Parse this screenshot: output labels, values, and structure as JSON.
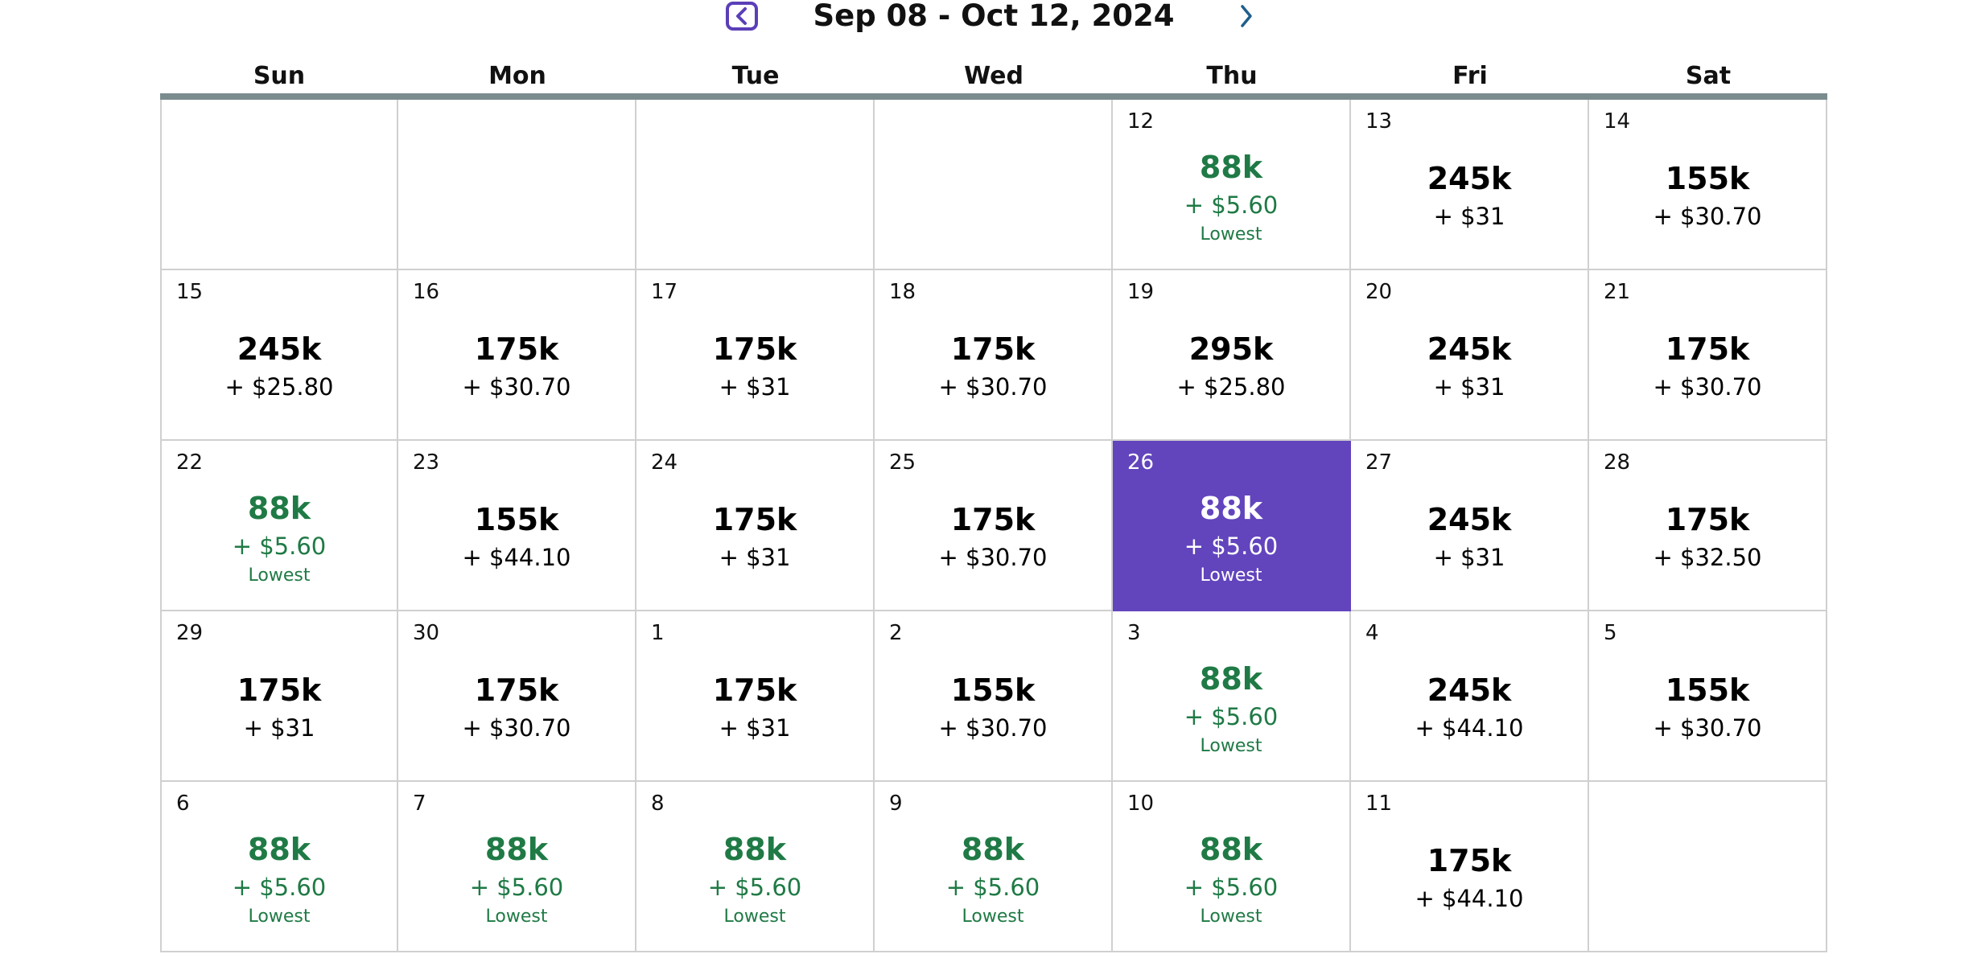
{
  "header": {
    "title": "Sep 08 - Oct 12, 2024",
    "prev_icon": "chevron-left-icon",
    "next_icon": "chevron-right-icon"
  },
  "weekdays": [
    "Sun",
    "Mon",
    "Tue",
    "Wed",
    "Thu",
    "Fri",
    "Sat"
  ],
  "lowest_label": "Lowest",
  "colors": {
    "accent": "#6244bd",
    "lowest": "#1f7a45",
    "header_rule": "#7b8c8f",
    "grid_line": "#d0d0d0"
  },
  "selected_date": "26",
  "weeks": [
    [
      null,
      null,
      null,
      null,
      {
        "date": "12",
        "points": "88k",
        "tax": "+ $5.60",
        "lowest": true
      },
      {
        "date": "13",
        "points": "245k",
        "tax": "+ $31",
        "lowest": false
      },
      {
        "date": "14",
        "points": "155k",
        "tax": "+ $30.70",
        "lowest": false
      }
    ],
    [
      {
        "date": "15",
        "points": "245k",
        "tax": "+ $25.80",
        "lowest": false
      },
      {
        "date": "16",
        "points": "175k",
        "tax": "+ $30.70",
        "lowest": false
      },
      {
        "date": "17",
        "points": "175k",
        "tax": "+ $31",
        "lowest": false
      },
      {
        "date": "18",
        "points": "175k",
        "tax": "+ $30.70",
        "lowest": false
      },
      {
        "date": "19",
        "points": "295k",
        "tax": "+ $25.80",
        "lowest": false
      },
      {
        "date": "20",
        "points": "245k",
        "tax": "+ $31",
        "lowest": false
      },
      {
        "date": "21",
        "points": "175k",
        "tax": "+ $30.70",
        "lowest": false
      }
    ],
    [
      {
        "date": "22",
        "points": "88k",
        "tax": "+ $5.60",
        "lowest": true
      },
      {
        "date": "23",
        "points": "155k",
        "tax": "+ $44.10",
        "lowest": false
      },
      {
        "date": "24",
        "points": "175k",
        "tax": "+ $31",
        "lowest": false
      },
      {
        "date": "25",
        "points": "175k",
        "tax": "+ $30.70",
        "lowest": false
      },
      {
        "date": "26",
        "points": "88k",
        "tax": "+ $5.60",
        "lowest": true,
        "selected": true
      },
      {
        "date": "27",
        "points": "245k",
        "tax": "+ $31",
        "lowest": false
      },
      {
        "date": "28",
        "points": "175k",
        "tax": "+ $32.50",
        "lowest": false
      }
    ],
    [
      {
        "date": "29",
        "points": "175k",
        "tax": "+ $31",
        "lowest": false
      },
      {
        "date": "30",
        "points": "175k",
        "tax": "+ $30.70",
        "lowest": false
      },
      {
        "date": "1",
        "points": "175k",
        "tax": "+ $31",
        "lowest": false
      },
      {
        "date": "2",
        "points": "155k",
        "tax": "+ $30.70",
        "lowest": false
      },
      {
        "date": "3",
        "points": "88k",
        "tax": "+ $5.60",
        "lowest": true
      },
      {
        "date": "4",
        "points": "245k",
        "tax": "+ $44.10",
        "lowest": false
      },
      {
        "date": "5",
        "points": "155k",
        "tax": "+ $30.70",
        "lowest": false
      }
    ],
    [
      {
        "date": "6",
        "points": "88k",
        "tax": "+ $5.60",
        "lowest": true
      },
      {
        "date": "7",
        "points": "88k",
        "tax": "+ $5.60",
        "lowest": true
      },
      {
        "date": "8",
        "points": "88k",
        "tax": "+ $5.60",
        "lowest": true
      },
      {
        "date": "9",
        "points": "88k",
        "tax": "+ $5.60",
        "lowest": true
      },
      {
        "date": "10",
        "points": "88k",
        "tax": "+ $5.60",
        "lowest": true
      },
      {
        "date": "11",
        "points": "175k",
        "tax": "+ $44.10",
        "lowest": false
      },
      null
    ]
  ]
}
